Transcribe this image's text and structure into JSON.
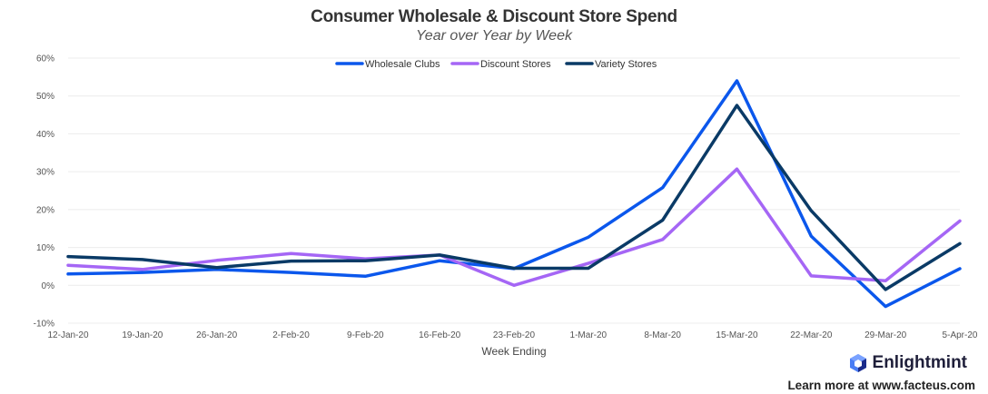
{
  "chart_data": {
    "type": "line",
    "title": "Consumer Wholesale & Discount Store Spend",
    "subtitle": "Year over Year by Week",
    "xlabel": "Week Ending",
    "ylabel": "",
    "categories": [
      "12-Jan-20",
      "19-Jan-20",
      "26-Jan-20",
      "2-Feb-20",
      "9-Feb-20",
      "16-Feb-20",
      "23-Feb-20",
      "1-Mar-20",
      "8-Mar-20",
      "15-Mar-20",
      "22-Mar-20",
      "29-Mar-20",
      "5-Apr-20"
    ],
    "ylim": [
      -10,
      60
    ],
    "yticks": [
      "-10%",
      "0%",
      "10%",
      "20%",
      "30%",
      "40%",
      "50%",
      "60%"
    ],
    "ytick_values": [
      -10,
      0,
      10,
      20,
      30,
      40,
      50,
      60
    ],
    "grid": true,
    "legend_position": "top-center",
    "series": [
      {
        "name": "Wholesale Clubs",
        "color": "#0b57ec",
        "values": [
          3,
          3.4,
          4.2,
          3.4,
          2.4,
          6.5,
          4.4,
          12.7,
          25.8,
          54,
          13,
          -5.6,
          4.4
        ]
      },
      {
        "name": "Discount Stores",
        "color": "#a566f5",
        "values": [
          5.3,
          4.2,
          6.6,
          8.4,
          7,
          8,
          0,
          5.8,
          12.1,
          30.7,
          2.5,
          1.2,
          17
        ]
      },
      {
        "name": "Variety Stores",
        "color": "#0a3a66",
        "values": [
          7.6,
          6.8,
          4.7,
          6.4,
          6.5,
          8,
          4.5,
          4.5,
          17.2,
          47.5,
          19.7,
          -1.1,
          11
        ]
      }
    ]
  },
  "brand": {
    "name": "Enlightmint",
    "icon": "enlightmint-logo-icon",
    "icon_colors": [
      "#4a7df5",
      "#1a2b8a"
    ]
  },
  "footer": {
    "text": "Learn more at www.facteus.com"
  }
}
